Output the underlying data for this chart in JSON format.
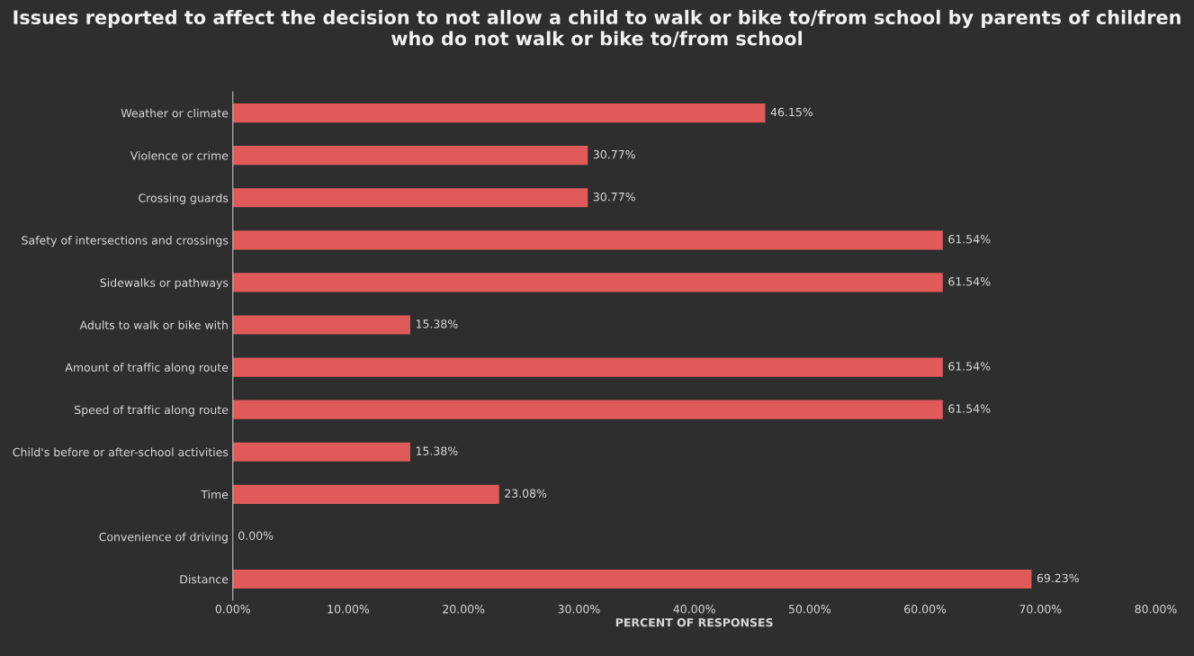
{
  "chart_data": {
    "type": "bar",
    "orientation": "horizontal",
    "title": "Issues reported to affect the decision to not allow a child to walk or bike to/from school by parents of children who do not walk or bike to/from school",
    "xlabel": "PERCENT OF RESPONSES",
    "categories": [
      "Weather or climate",
      "Violence or crime",
      "Crossing guards",
      "Safety of intersections and crossings",
      "Sidewalks or pathways",
      "Adults to walk or bike with",
      "Amount of traffic along route",
      "Speed of traffic along route",
      "Child's before or after-school activities",
      "Time",
      "Convenience of driving",
      "Distance"
    ],
    "values": [
      46.15,
      30.77,
      30.77,
      61.54,
      61.54,
      15.38,
      61.54,
      61.54,
      15.38,
      23.08,
      0.0,
      69.23
    ],
    "value_labels": [
      "46.15%",
      "30.77%",
      "30.77%",
      "61.54%",
      "61.54%",
      "15.38%",
      "61.54%",
      "61.54%",
      "15.38%",
      "23.08%",
      "0.00%",
      "69.23%"
    ],
    "color": "#e05a5a",
    "xlim": [
      0,
      80
    ],
    "xticks": [
      {
        "value": 0,
        "label": "0.00%"
      },
      {
        "value": 10,
        "label": "10.00%"
      },
      {
        "value": 20,
        "label": "20.00%"
      },
      {
        "value": 30,
        "label": "30.00%"
      },
      {
        "value": 40,
        "label": "40.00%"
      },
      {
        "value": 50,
        "label": "50.00%"
      },
      {
        "value": 60,
        "label": "60.00%"
      },
      {
        "value": 70,
        "label": "70.00%"
      },
      {
        "value": 80,
        "label": "80.00%"
      }
    ],
    "grid": false,
    "legend": false
  }
}
